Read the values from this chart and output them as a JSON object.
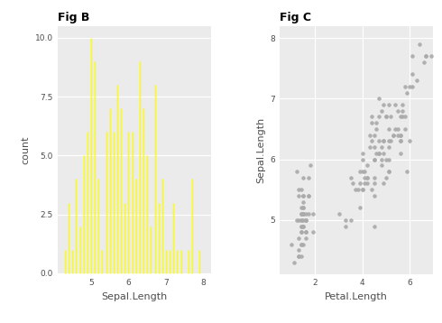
{
  "fig_b_title": "Fig B",
  "fig_c_title": "Fig C",
  "fig_b_xlabel": "Sepal.Length",
  "fig_b_ylabel": "count",
  "fig_c_xlabel": "Petal.Length",
  "fig_c_ylabel": "Sepal.Length",
  "bar_color": "#FFFF00",
  "scatter_color": "#AAAAAA",
  "background_color": "#FFFFFF",
  "panel_color": "#EBEBEB",
  "grid_color": "#FFFFFF",
  "axis_text_color": "#4D4D4D",
  "spine_color": "#AAAAAA",
  "sepal_length": [
    5.1,
    4.9,
    4.7,
    4.6,
    5.0,
    5.4,
    4.6,
    5.0,
    4.4,
    4.9,
    5.4,
    4.8,
    4.8,
    4.3,
    5.8,
    5.7,
    5.4,
    5.1,
    5.7,
    5.1,
    5.4,
    5.1,
    4.6,
    5.1,
    4.8,
    5.0,
    5.0,
    5.2,
    5.2,
    4.7,
    4.8,
    5.4,
    5.2,
    5.5,
    4.9,
    5.0,
    5.5,
    4.9,
    4.4,
    5.1,
    5.0,
    4.5,
    4.4,
    5.0,
    5.1,
    4.8,
    5.1,
    4.6,
    5.3,
    5.0,
    7.0,
    6.4,
    6.9,
    5.5,
    6.5,
    5.7,
    6.3,
    4.9,
    6.6,
    5.2,
    5.0,
    5.9,
    6.0,
    6.1,
    5.6,
    6.7,
    5.6,
    5.8,
    6.2,
    5.6,
    5.9,
    6.1,
    6.3,
    6.1,
    6.4,
    6.6,
    6.8,
    6.7,
    6.0,
    5.7,
    5.5,
    5.5,
    5.8,
    6.0,
    5.4,
    6.0,
    6.7,
    6.3,
    5.6,
    5.5,
    5.5,
    6.1,
    5.8,
    5.0,
    5.6,
    5.7,
    5.7,
    6.2,
    5.1,
    5.7,
    6.3,
    5.8,
    7.1,
    6.3,
    6.5,
    7.6,
    4.9,
    7.3,
    6.7,
    7.2,
    6.5,
    6.4,
    6.8,
    5.7,
    5.8,
    6.4,
    6.5,
    7.7,
    7.7,
    6.0,
    6.9,
    5.6,
    7.7,
    6.3,
    6.7,
    7.2,
    6.2,
    6.1,
    6.4,
    7.2,
    7.4,
    7.9,
    6.4,
    6.3,
    6.1,
    7.7,
    6.3,
    6.4,
    6.0,
    6.9,
    6.7,
    6.9,
    5.8,
    6.8,
    6.7,
    6.7,
    6.3,
    6.5,
    6.2,
    5.9
  ],
  "petal_length": [
    1.4,
    1.4,
    1.3,
    1.5,
    1.4,
    1.7,
    1.4,
    1.5,
    1.4,
    1.5,
    1.5,
    1.6,
    1.4,
    1.1,
    1.2,
    1.5,
    1.3,
    1.4,
    1.7,
    1.5,
    1.7,
    1.5,
    1.0,
    1.7,
    1.9,
    1.6,
    1.6,
    1.5,
    1.4,
    1.6,
    1.6,
    1.5,
    1.5,
    1.4,
    1.5,
    1.2,
    1.3,
    1.4,
    1.3,
    1.5,
    1.3,
    1.3,
    1.3,
    1.6,
    1.9,
    1.4,
    1.6,
    1.4,
    1.5,
    1.4,
    4.7,
    4.5,
    4.9,
    4.0,
    4.6,
    4.5,
    4.7,
    3.3,
    4.6,
    3.9,
    3.5,
    4.2,
    4.0,
    4.7,
    3.6,
    4.4,
    4.5,
    4.1,
    4.5,
    3.9,
    4.8,
    4.0,
    4.9,
    4.7,
    4.3,
    4.4,
    4.8,
    5.0,
    4.5,
    3.5,
    3.8,
    3.7,
    3.9,
    5.1,
    4.5,
    4.5,
    4.7,
    4.4,
    4.1,
    4.0,
    4.4,
    4.6,
    4.0,
    3.3,
    4.2,
    4.2,
    4.2,
    4.3,
    3.0,
    4.1,
    6.0,
    5.1,
    5.9,
    5.6,
    5.8,
    6.6,
    4.5,
    6.3,
    5.8,
    6.1,
    5.1,
    5.3,
    5.5,
    5.0,
    5.1,
    5.3,
    5.5,
    6.7,
    6.9,
    5.0,
    5.7,
    4.9,
    6.7,
    4.9,
    5.7,
    6.0,
    4.8,
    4.9,
    5.6,
    5.8,
    6.1,
    6.4,
    5.6,
    5.1,
    5.6,
    6.1,
    5.6,
    5.5,
    4.8,
    5.4,
    5.6,
    5.1,
    5.9,
    5.7,
    5.2,
    5.0,
    5.2,
    5.4,
    5.1,
    1.8
  ]
}
